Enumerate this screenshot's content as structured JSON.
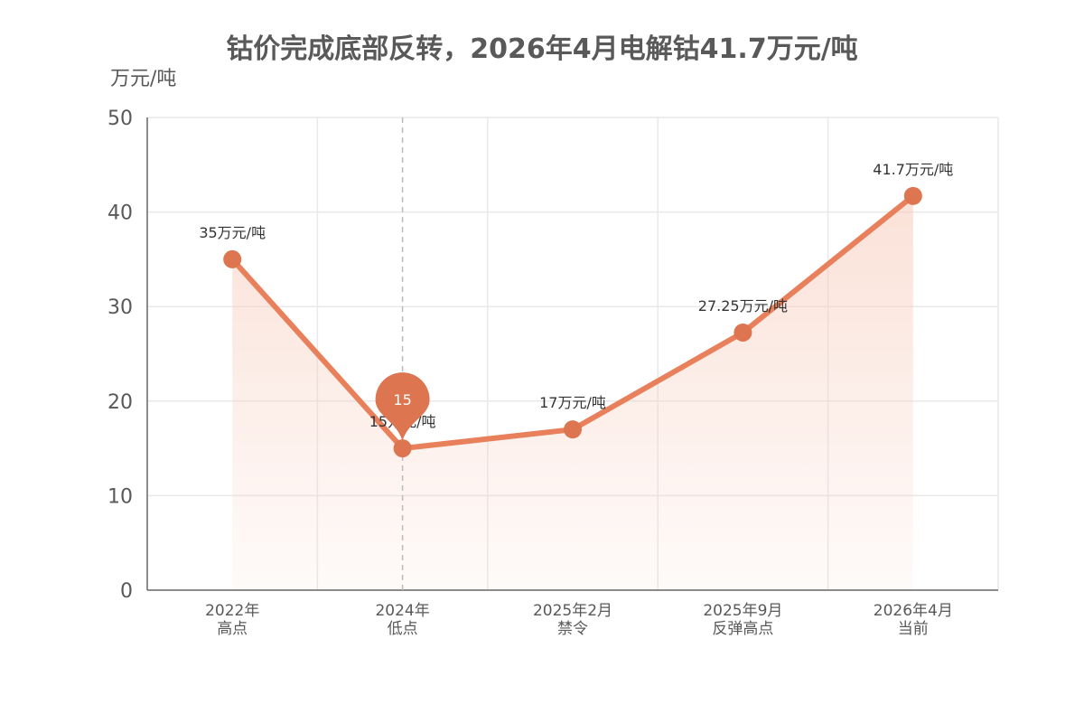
{
  "chart_data": {
    "type": "line",
    "title": "钴价完成底部反转，2026年4月电解钴41.7万元/吨",
    "ylabel": "万元/吨",
    "ylim": [
      0,
      50
    ],
    "yticks": [
      0,
      10,
      20,
      30,
      40,
      50
    ],
    "categories": [
      [
        "2022年",
        "高点"
      ],
      [
        "2024年",
        "低点"
      ],
      [
        "2025年2月",
        "禁令"
      ],
      [
        "2025年9月",
        "反弹高点"
      ],
      [
        "2026年4月",
        "当前"
      ]
    ],
    "values": [
      35,
      15,
      17,
      27.25,
      41.7
    ],
    "data_labels": [
      "35万元/吨",
      "15万元/吨",
      "17万元/吨",
      "27.25万元/吨",
      "41.7万元/吨"
    ],
    "highlight": {
      "index": 1,
      "label": "15"
    },
    "grid": true,
    "colors": {
      "line": "#E8805C",
      "point": "#DC7550",
      "area": "#F7C9B8",
      "pin": "#DC7550"
    }
  }
}
